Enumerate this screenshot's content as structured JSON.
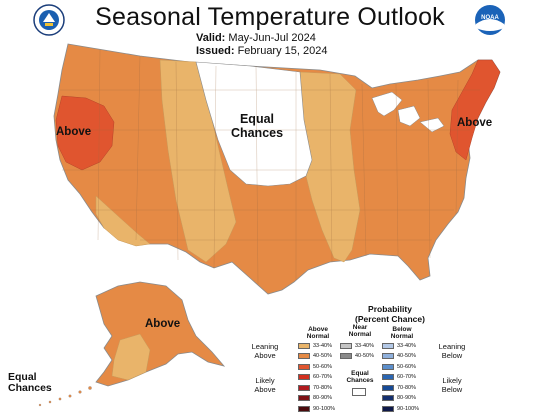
{
  "header": {
    "title": "Seasonal Temperature Outlook",
    "valid_label": "Valid:",
    "valid_value": "May-Jun-Jul 2024",
    "issued_label": "Issued:",
    "issued_value": "February 15, 2024"
  },
  "logos": {
    "left": "commerce-seal-icon",
    "right": "noaa-logo-icon",
    "right_text": "NOAA"
  },
  "map_labels": {
    "above_west": "Above",
    "above_northeast": "Above",
    "equal_chances_line1": "Equal",
    "equal_chances_line2": "Chances",
    "above_alaska": "Above",
    "equal_sw_line1": "Equal",
    "equal_sw_line2": "Chances"
  },
  "colors": {
    "leaning_above": "#e9b46a",
    "above_40_50": "#e58a45",
    "above_50_60": "#e0552f",
    "equal_chances": "#ffffff",
    "border": "#888888"
  },
  "legend": {
    "title_line1": "Probability",
    "title_line2": "(Percent Chance)",
    "above_head_line1": "Above",
    "above_head_line2": "Normal",
    "near_head_line1": "Near",
    "near_head_line2": "Normal",
    "below_head_line1": "Below",
    "below_head_line2": "Normal",
    "leaning_above_line1": "Leaning",
    "leaning_above_line2": "Above",
    "likely_above_line1": "Likely",
    "likely_above_line2": "Above",
    "leaning_below_line1": "Leaning",
    "leaning_below_line2": "Below",
    "likely_below_line1": "Likely",
    "likely_below_line2": "Below",
    "equal_line1": "Equal",
    "equal_line2": "Chances",
    "above": [
      {
        "range": "33-40%",
        "color": "#e9b46a"
      },
      {
        "range": "40-50%",
        "color": "#e58a45"
      },
      {
        "range": "50-60%",
        "color": "#e0552f"
      },
      {
        "range": "60-70%",
        "color": "#d2301f"
      },
      {
        "range": "70-80%",
        "color": "#b01b1f"
      },
      {
        "range": "80-90%",
        "color": "#7e1216"
      },
      {
        "range": "90-100%",
        "color": "#4a0b0d"
      }
    ],
    "near": [
      {
        "range": "33-40%",
        "color": "#c4c4c4"
      },
      {
        "range": "40-50%",
        "color": "#8a8a8a"
      }
    ],
    "below": [
      {
        "range": "33-40%",
        "color": "#b3c8e6"
      },
      {
        "range": "40-50%",
        "color": "#8fb0dc"
      },
      {
        "range": "50-60%",
        "color": "#5b8ecb"
      },
      {
        "range": "60-70%",
        "color": "#2b66b2"
      },
      {
        "range": "70-80%",
        "color": "#174a96"
      },
      {
        "range": "80-90%",
        "color": "#142f6e"
      },
      {
        "range": "90-100%",
        "color": "#0e1848"
      }
    ]
  }
}
